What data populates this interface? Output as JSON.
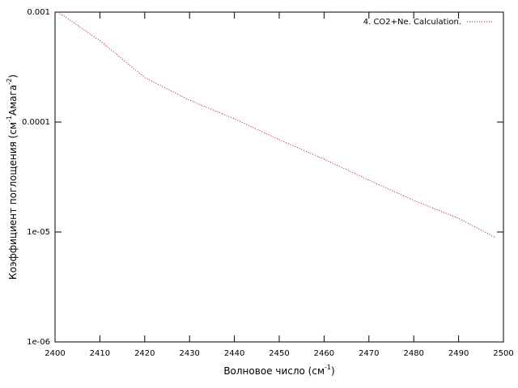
{
  "chart_data": {
    "type": "line",
    "xlabel": [
      "Волновое число (см",
      "-1",
      ")"
    ],
    "ylabel": [
      "Коэффициент поглощения (см",
      "-1",
      "Амага",
      "-2",
      ")"
    ],
    "x": [
      2401,
      2402,
      2410,
      2420,
      2430,
      2440,
      2450,
      2460,
      2470,
      2480,
      2490,
      2498
    ],
    "series": [
      {
        "name": "4. CO2+Ne. Calculation.",
        "color": "#ff0000",
        "values": [
          0.00097,
          0.00092,
          0.00055,
          0.000254,
          0.000158,
          0.000107,
          6.9e-05,
          4.6e-05,
          2.96e-05,
          1.94e-05,
          1.33e-05,
          9e-06
        ]
      }
    ],
    "xlim": [
      2400,
      2500
    ],
    "xticks": [
      2400,
      2410,
      2420,
      2430,
      2440,
      2450,
      2460,
      2470,
      2480,
      2490,
      2500
    ],
    "ylim": [
      1e-06,
      0.001
    ],
    "yticks": [
      {
        "value": 1e-06,
        "label": "1e-06"
      },
      {
        "value": 1e-05,
        "label": "1e-05"
      },
      {
        "value": 0.0001,
        "label": "0.0001"
      },
      {
        "value": 0.001,
        "label": "0.001"
      }
    ],
    "log_y": true,
    "legend": "top-right"
  }
}
